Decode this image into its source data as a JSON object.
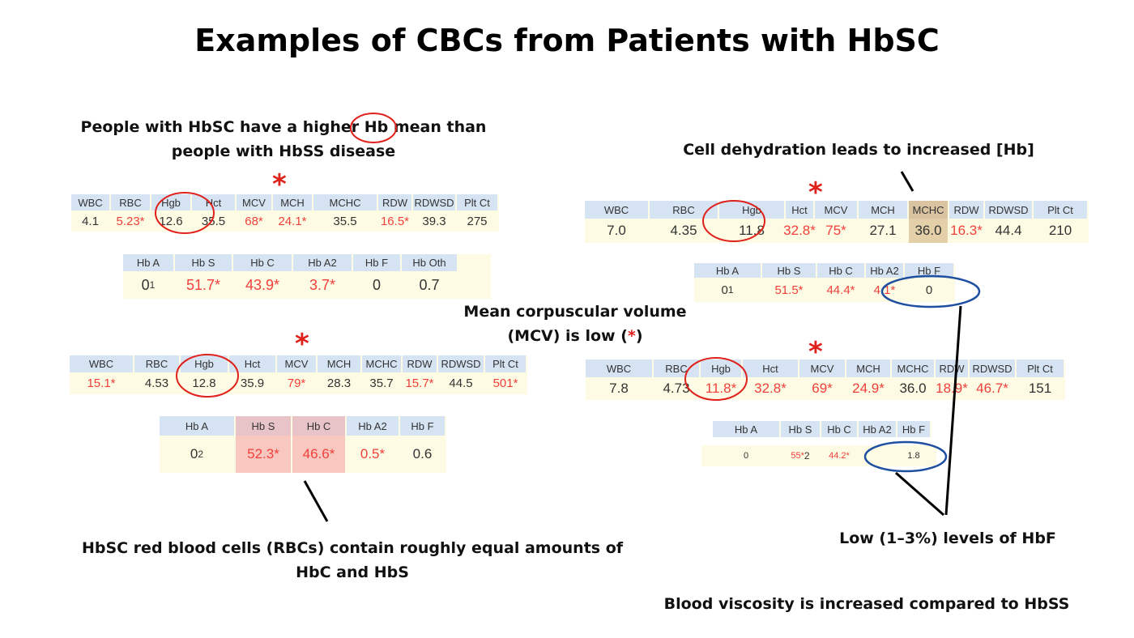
{
  "title": "Examples of CBCs from Patients with HbSC",
  "captions": {
    "hb_mean": "People with HbSC have a higher Hb mean than people with HbSS disease",
    "dehydration": "Cell dehydration leads to increased [Hb]",
    "mcv": "Mean corpuscular volume (MCV) is low (",
    "mcv_end": ")",
    "equal": "HbSC red blood cells (RBCs) contain roughly equal amounts of HbC and HbS",
    "hbf": "Low (1–3%) levels of HbF",
    "viscosity": "Blood viscosity is increased compared to HbSS"
  },
  "star_symbol": "*",
  "colors": {
    "abnormal": "#f0403c",
    "header": "#d6e3f3",
    "row": "#fdfbe3",
    "circle_red": "#e0201a",
    "circle_blue": "#1f4fa0",
    "highlight_mchc": "#e3cfa8",
    "highlight_hb": "#f7c7c0"
  },
  "tables": {
    "cbc1": {
      "headers": [
        "WBC",
        "RBC",
        "Hgb",
        "Hct",
        "MCV",
        "MCH",
        "MCHC",
        "RDW",
        "RDWSD",
        "Plt Ct"
      ],
      "values": [
        "4.1",
        "5.23*",
        "12.6",
        "35.5",
        "68*",
        "24.1*",
        "35.5",
        "16.5*",
        "39.3",
        "275"
      ],
      "abnormal": [
        false,
        true,
        false,
        false,
        true,
        true,
        false,
        true,
        false,
        false
      ]
    },
    "hb1": {
      "headers": [
        "Hb A",
        "Hb S",
        "Hb C",
        "Hb A2",
        "Hb F",
        "Hb Oth"
      ],
      "values": [
        "0",
        "51.7*",
        "43.9*",
        "3.7*",
        "0",
        "0.7"
      ],
      "abnormal": [
        false,
        true,
        true,
        true,
        false,
        false
      ],
      "footnote": "1"
    },
    "cbc2": {
      "headers": [
        "WBC",
        "RBC",
        "Hgb",
        "Hct",
        "MCV",
        "MCH",
        "MCHC",
        "RDW",
        "RDWSD",
        "Plt Ct"
      ],
      "values": [
        "15.1*",
        "4.53",
        "12.8",
        "35.9",
        "79*",
        "28.3",
        "35.7",
        "15.7*",
        "44.5",
        "501*"
      ],
      "abnormal": [
        true,
        false,
        false,
        false,
        true,
        false,
        false,
        true,
        false,
        true
      ]
    },
    "hb2": {
      "headers": [
        "Hb A",
        "Hb S",
        "Hb C",
        "Hb A2",
        "Hb F"
      ],
      "values": [
        "0",
        "52.3*",
        "46.6*",
        "0.5*",
        "0.6"
      ],
      "abnormal": [
        false,
        true,
        true,
        true,
        false
      ],
      "footnote": "2"
    },
    "cbc3": {
      "headers": [
        "WBC",
        "RBC",
        "Hgb",
        "Hct",
        "MCV",
        "MCH",
        "MCHC",
        "RDW",
        "RDWSD",
        "Plt Ct"
      ],
      "values": [
        "7.0",
        "4.35",
        "11.8",
        "32.8*",
        "75*",
        "27.1",
        "36.0",
        "16.3*",
        "44.4",
        "210"
      ],
      "abnormal": [
        false,
        false,
        false,
        true,
        true,
        false,
        false,
        true,
        false,
        false
      ]
    },
    "hb3": {
      "headers": [
        "Hb A",
        "Hb S",
        "Hb C",
        "Hb A2",
        "Hb F"
      ],
      "values": [
        "0",
        "51.5*",
        "44.4*",
        "4.1*",
        "0"
      ],
      "abnormal": [
        false,
        true,
        true,
        true,
        false
      ],
      "footnote": "1"
    },
    "cbc4": {
      "headers": [
        "WBC",
        "RBC",
        "Hgb",
        "Hct",
        "MCV",
        "MCH",
        "MCHC",
        "RDW",
        "RDWSD",
        "Plt Ct"
      ],
      "values": [
        "7.8",
        "4.73",
        "11.8*",
        "32.8*",
        "69*",
        "24.9*",
        "36.0",
        "18.9*",
        "46.7*",
        "151"
      ],
      "abnormal": [
        false,
        false,
        true,
        true,
        true,
        true,
        false,
        true,
        true,
        false
      ]
    },
    "hb4": {
      "headers": [
        "Hb A",
        "Hb S",
        "Hb C",
        "Hb A2",
        "Hb F"
      ],
      "values": [
        "0",
        "55*",
        "44.2*",
        "",
        "1.8"
      ],
      "abnormal": [
        false,
        true,
        true,
        false,
        false
      ],
      "footnote": "2"
    }
  }
}
